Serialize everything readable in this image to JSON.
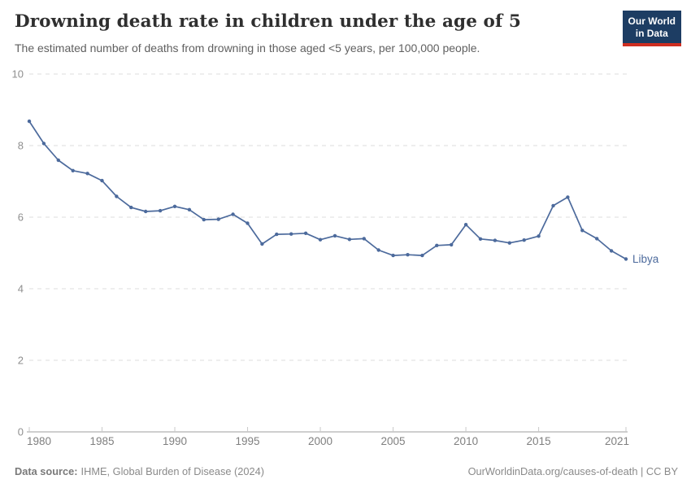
{
  "chart_data": {
    "type": "line",
    "title": "Drowning death rate in children under the age of 5",
    "subtitle": "The estimated number of deaths from drowning in those aged <5 years, per 100,000 people.",
    "x": [
      1980,
      1981,
      1982,
      1983,
      1984,
      1985,
      1986,
      1987,
      1988,
      1989,
      1990,
      1991,
      1992,
      1993,
      1994,
      1995,
      1996,
      1997,
      1998,
      1999,
      2000,
      2001,
      2002,
      2003,
      2004,
      2005,
      2006,
      2007,
      2008,
      2009,
      2010,
      2011,
      2012,
      2013,
      2014,
      2015,
      2016,
      2017,
      2018,
      2019,
      2020,
      2021
    ],
    "series": [
      {
        "name": "Libya",
        "color": "#4C6A9C",
        "values": [
          8.68,
          8.06,
          7.59,
          7.3,
          7.22,
          7.02,
          6.58,
          6.27,
          6.16,
          6.18,
          6.3,
          6.21,
          5.93,
          5.94,
          6.08,
          5.83,
          5.25,
          5.52,
          5.53,
          5.55,
          5.37,
          5.48,
          5.38,
          5.4,
          5.08,
          4.93,
          4.95,
          4.93,
          5.21,
          5.23,
          5.79,
          5.39,
          5.35,
          5.28,
          5.36,
          5.47,
          6.32,
          6.56,
          5.63,
          5.4,
          5.06,
          4.83
        ]
      }
    ],
    "x_ticks": [
      1980,
      1985,
      1990,
      1995,
      2000,
      2005,
      2010,
      2015,
      2021
    ],
    "y_ticks": [
      0,
      2,
      4,
      6,
      8,
      10
    ],
    "xlim": [
      1980,
      2021
    ],
    "ylim": [
      0,
      10
    ],
    "grid": true,
    "legend": "end-of-line-label",
    "end_label": "Libya"
  },
  "logo": {
    "line1": "Our World",
    "line2": "in Data",
    "bg_color": "#1d3d63",
    "bar_color": "#cf2e21"
  },
  "footer": {
    "source_label": "Data source:",
    "source_text": "IHME, Global Burden of Disease (2024)",
    "credit_link": "OurWorldinData.org/causes-of-death",
    "credit_suffix": " | CC BY"
  }
}
